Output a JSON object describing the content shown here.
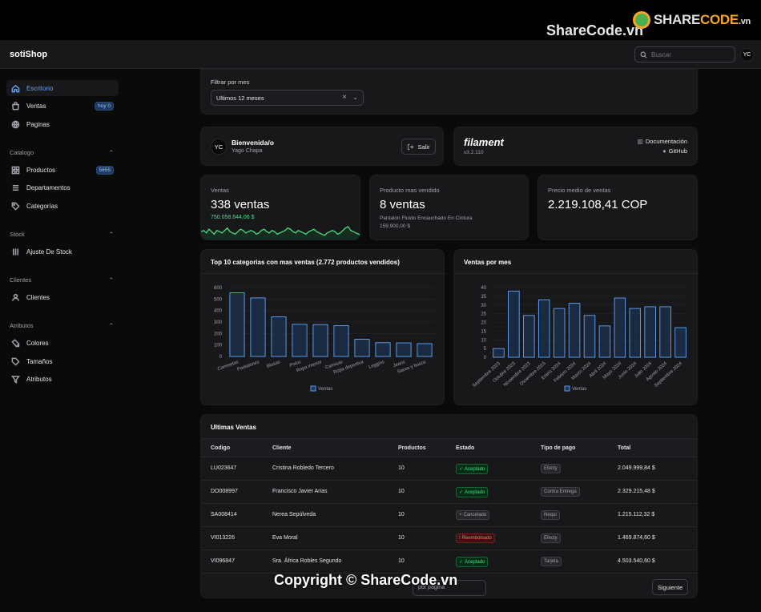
{
  "watermark": {
    "site": "ShareCode.vn",
    "logo_main": "SHARE",
    "logo_accent": "CODE",
    "logo_suffix": ".vn",
    "copyright": "Copyright © ShareCode.vn"
  },
  "header": {
    "brand": "sotiShop",
    "search_placeholder": "Buscar",
    "avatar": "YC"
  },
  "sidebar": {
    "items": [
      {
        "label": "Escritorio",
        "icon": "home-icon",
        "active": true
      },
      {
        "label": "Ventas",
        "icon": "shopping-bag-icon",
        "badge": "hoy 0"
      },
      {
        "label": "Paginas",
        "icon": "globe-icon"
      }
    ],
    "groups": [
      {
        "title": "Catalogo",
        "items": [
          {
            "label": "Productos",
            "icon": "grid-icon",
            "badge": "5655"
          },
          {
            "label": "Departamentos",
            "icon": "list-icon"
          },
          {
            "label": "Categorías",
            "icon": "tag-icon"
          }
        ]
      },
      {
        "title": "Stock",
        "items": [
          {
            "label": "Ajuste De Stock",
            "icon": "sliders-icon"
          }
        ]
      },
      {
        "title": "Clientes",
        "items": [
          {
            "label": "Clientes",
            "icon": "user-icon"
          }
        ]
      },
      {
        "title": "Atributos",
        "items": [
          {
            "label": "Colores",
            "icon": "palette-icon"
          },
          {
            "label": "Tamaños",
            "icon": "tag-icon"
          },
          {
            "label": "Atributos",
            "icon": "filter-icon"
          }
        ]
      }
    ]
  },
  "filter": {
    "label": "Filtrar por mes",
    "value": "Ultimos 12 meses"
  },
  "welcome": {
    "avatar": "YC",
    "title": "Bienvenida/o",
    "name": "Yago Chapa",
    "logout": "Salir"
  },
  "filament": {
    "logo": "filament",
    "version": "v3.2.110",
    "docs": "Documentación",
    "github": "GitHub"
  },
  "stats": {
    "sales": {
      "label": "Ventas",
      "value": "338 ventas",
      "amount": "750.058.644,06 $",
      "spark": [
        5,
        6,
        4,
        7,
        5,
        3,
        6,
        5,
        4,
        6,
        8,
        5,
        4,
        3,
        5,
        7,
        6,
        4,
        5,
        6,
        5,
        3,
        4,
        6,
        7,
        5,
        4,
        6,
        5,
        3,
        4,
        5,
        6,
        8,
        7,
        5,
        4,
        6,
        5,
        4,
        3,
        5,
        6,
        7,
        5,
        4,
        3,
        2,
        4,
        5,
        6,
        5,
        3,
        4,
        6,
        8,
        9,
        6,
        5,
        4,
        3,
        2
      ]
    },
    "top_product": {
      "label": "Producto mas vendido",
      "value": "8 ventas",
      "product": "Pantalon Fluido Encauchado En Cintura",
      "price": "159.900,00 $"
    },
    "avg_price": {
      "label": "Precio medio de ventas",
      "value": "2.219.108,41 COP"
    }
  },
  "chart_data": [
    {
      "type": "bar",
      "title": "Top 10 categorias con mas ventas (2.772 productos vendidos)",
      "categories": [
        "Camisetas",
        "Pantalones",
        "Blusas",
        "Polos",
        "Ropa interior",
        "Camisas",
        "Ropa deportiva",
        "Leggins",
        "Jeans",
        "Sacos y busos"
      ],
      "values": [
        555,
        510,
        345,
        280,
        278,
        268,
        150,
        120,
        118,
        112
      ],
      "ylim": [
        0,
        600
      ],
      "yticks": [
        0,
        100,
        200,
        300,
        400,
        500,
        600
      ],
      "legend": "Ventas"
    },
    {
      "type": "bar",
      "title": "Ventas por mes",
      "categories": [
        "Septiembre 2023",
        "Octubre 2023",
        "Noviembre 2023",
        "Diciembre 2023",
        "Enero 2024",
        "Febrero 2024",
        "Marzo 2024",
        "Abril 2024",
        "Mayo 2024",
        "Junio 2024",
        "Julio 2024",
        "Agosto 2024",
        "Septiembre 2024"
      ],
      "values": [
        5,
        38,
        24,
        33,
        28,
        31,
        24,
        18,
        34,
        28,
        29,
        29,
        17
      ],
      "ylim": [
        0,
        40
      ],
      "yticks": [
        0,
        5,
        10,
        15,
        20,
        25,
        30,
        35,
        40
      ],
      "legend": "Ventas"
    }
  ],
  "table": {
    "title": "Ultimas Ventas",
    "columns": [
      "Codigo",
      "Cliente",
      "Productos",
      "Estado",
      "Tipo de pago",
      "Total"
    ],
    "rows": [
      {
        "code": "LU023647",
        "client": "Cristina Robledo Tercero",
        "products": "10",
        "status": "Aceptado",
        "status_kind": "ok",
        "payment": "Efecty",
        "total": "2.049.999,84 $"
      },
      {
        "code": "DO008997",
        "client": "Francisco Javier Arias",
        "products": "10",
        "status": "Aceptado",
        "status_kind": "ok",
        "payment": "Contra Entrega",
        "total": "2.329.215,48 $"
      },
      {
        "code": "SA008414",
        "client": "Nerea Sepúlveda",
        "products": "10",
        "status": "Cancelado",
        "status_kind": "cancel",
        "payment": "Nequi",
        "total": "1.215.112,32 $"
      },
      {
        "code": "VI013226",
        "client": "Eva Moral",
        "products": "10",
        "status": "Reembolsado",
        "status_kind": "refund",
        "payment": "Efecty",
        "total": "1.469.874,60 $"
      },
      {
        "code": "VI096847",
        "client": "Sra. África Robles Segundo",
        "products": "10",
        "status": "Aceptado",
        "status_kind": "ok",
        "payment": "Tarjeta",
        "total": "4.503.540,60 $"
      }
    ],
    "per_page": "por página",
    "next": "Siguiente"
  }
}
